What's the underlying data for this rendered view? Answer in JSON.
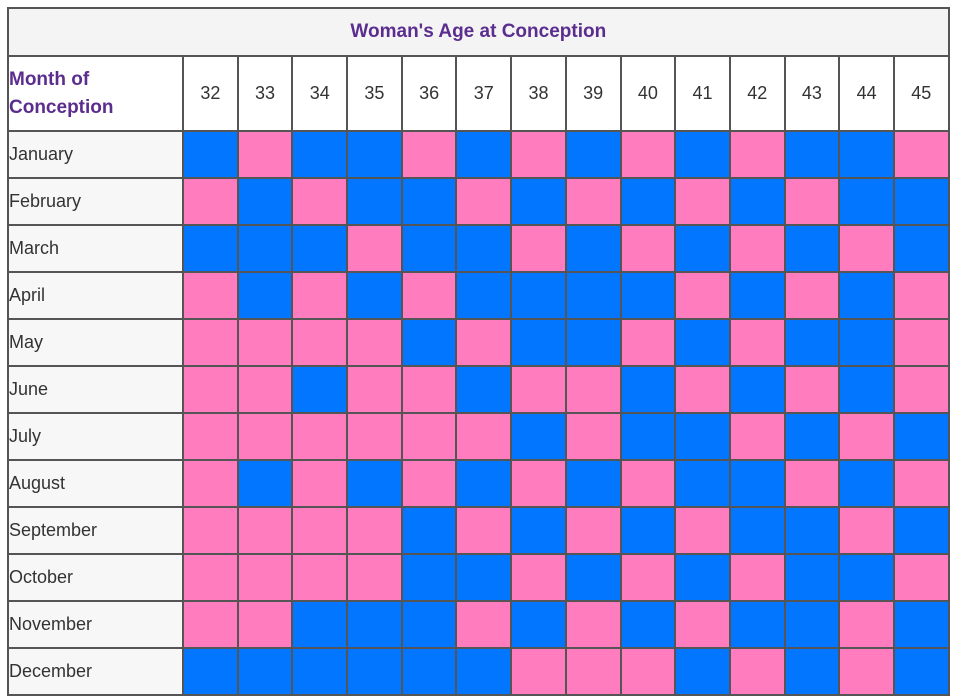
{
  "title": "Woman's Age at Conception",
  "row_header": "Month of\nConception",
  "colors": {
    "boy": "#0276fe",
    "girl": "#ff7dbe",
    "title_text": "#5b2d8e",
    "border": "#555555"
  },
  "chart_data": {
    "type": "table",
    "title": "Woman's Age at Conception",
    "xlabel": "Woman's Age at Conception",
    "ylabel": "Month of Conception",
    "columns": [
      "32",
      "33",
      "34",
      "35",
      "36",
      "37",
      "38",
      "39",
      "40",
      "41",
      "42",
      "43",
      "44",
      "45"
    ],
    "rows": [
      {
        "month": "January",
        "cells": [
          "blue",
          "pink",
          "blue",
          "blue",
          "pink",
          "blue",
          "pink",
          "blue",
          "pink",
          "blue",
          "pink",
          "blue",
          "blue",
          "pink"
        ]
      },
      {
        "month": "February",
        "cells": [
          "pink",
          "blue",
          "pink",
          "blue",
          "blue",
          "pink",
          "blue",
          "pink",
          "blue",
          "pink",
          "blue",
          "pink",
          "blue",
          "blue"
        ]
      },
      {
        "month": "March",
        "cells": [
          "blue",
          "blue",
          "blue",
          "pink",
          "blue",
          "blue",
          "pink",
          "blue",
          "pink",
          "blue",
          "pink",
          "blue",
          "pink",
          "blue"
        ]
      },
      {
        "month": "April",
        "cells": [
          "pink",
          "blue",
          "pink",
          "blue",
          "pink",
          "blue",
          "blue",
          "blue",
          "blue",
          "pink",
          "blue",
          "pink",
          "blue",
          "pink"
        ]
      },
      {
        "month": "May",
        "cells": [
          "pink",
          "pink",
          "pink",
          "pink",
          "blue",
          "pink",
          "blue",
          "blue",
          "pink",
          "blue",
          "pink",
          "blue",
          "blue",
          "pink"
        ]
      },
      {
        "month": "June",
        "cells": [
          "pink",
          "pink",
          "blue",
          "pink",
          "pink",
          "blue",
          "pink",
          "pink",
          "blue",
          "pink",
          "blue",
          "pink",
          "blue",
          "pink"
        ]
      },
      {
        "month": "July",
        "cells": [
          "pink",
          "pink",
          "pink",
          "pink",
          "pink",
          "pink",
          "blue",
          "pink",
          "blue",
          "blue",
          "pink",
          "blue",
          "pink",
          "blue"
        ]
      },
      {
        "month": "August",
        "cells": [
          "pink",
          "blue",
          "pink",
          "blue",
          "pink",
          "blue",
          "pink",
          "blue",
          "pink",
          "blue",
          "blue",
          "pink",
          "blue",
          "pink"
        ]
      },
      {
        "month": "September",
        "cells": [
          "pink",
          "pink",
          "pink",
          "pink",
          "blue",
          "pink",
          "blue",
          "pink",
          "blue",
          "pink",
          "blue",
          "blue",
          "pink",
          "blue"
        ]
      },
      {
        "month": "October",
        "cells": [
          "pink",
          "pink",
          "pink",
          "pink",
          "blue",
          "blue",
          "pink",
          "blue",
          "pink",
          "blue",
          "pink",
          "blue",
          "blue",
          "pink"
        ]
      },
      {
        "month": "November",
        "cells": [
          "pink",
          "pink",
          "blue",
          "blue",
          "blue",
          "pink",
          "blue",
          "pink",
          "blue",
          "pink",
          "blue",
          "blue",
          "pink",
          "blue"
        ]
      },
      {
        "month": "December",
        "cells": [
          "blue",
          "blue",
          "blue",
          "blue",
          "blue",
          "blue",
          "pink",
          "pink",
          "pink",
          "blue",
          "pink",
          "blue",
          "pink",
          "blue"
        ]
      }
    ]
  }
}
